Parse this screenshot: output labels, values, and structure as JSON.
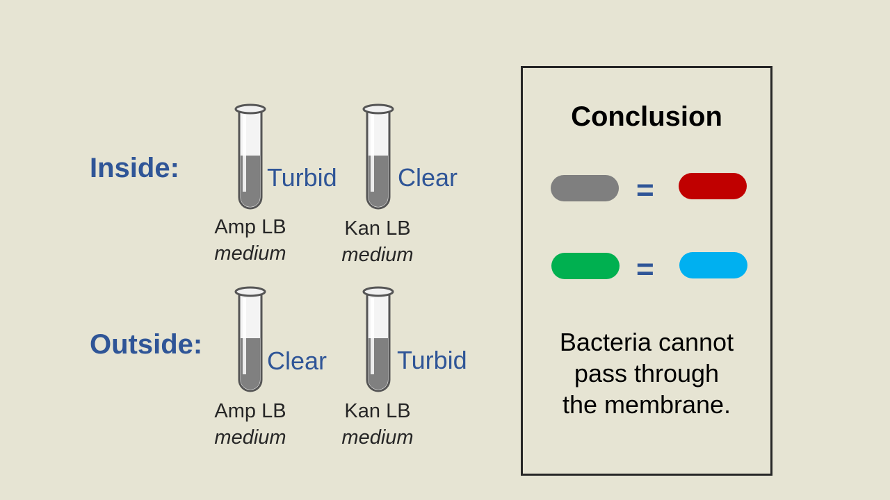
{
  "rows": [
    {
      "label": "Inside:",
      "tubes": [
        {
          "result": "Turbid",
          "medium_line1": "Amp LB",
          "medium_line2": "medium"
        },
        {
          "result": "Clear",
          "medium_line1": "Kan LB",
          "medium_line2": "medium"
        }
      ]
    },
    {
      "label": "Outside:",
      "tubes": [
        {
          "result": "Clear",
          "medium_line1": "Amp LB",
          "medium_line2": "medium"
        },
        {
          "result": "Turbid",
          "medium_line1": "Kan LB",
          "medium_line2": "medium"
        }
      ]
    }
  ],
  "conclusion": {
    "title": "Conclusion",
    "equations": [
      {
        "left_color": "#7f7f7f",
        "symbol": "=",
        "right_color": "#c00000"
      },
      {
        "left_color": "#00b050",
        "symbol": "=",
        "right_color": "#00b0f0"
      }
    ],
    "text_lines": [
      "Bacteria cannot",
      "pass through",
      "the membrane."
    ]
  },
  "colors": {
    "label_blue": "#2f5597",
    "background": "#e6e4d3",
    "tube_liquid": "#808080"
  }
}
